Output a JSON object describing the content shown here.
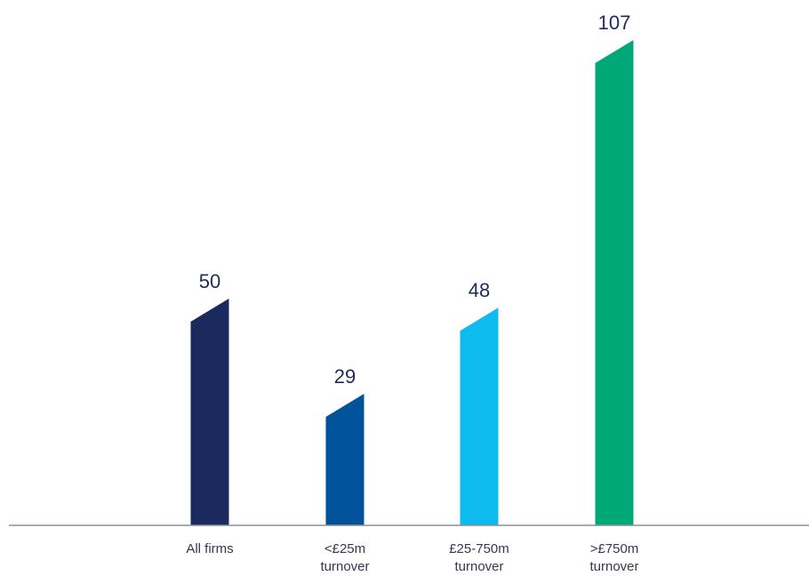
{
  "chart_data": {
    "type": "bar",
    "categories": [
      [
        "All firms"
      ],
      [
        "<£25m",
        "turnover"
      ],
      [
        "£25-750m",
        "turnover"
      ],
      [
        ">£750m",
        "turnover"
      ]
    ],
    "values": [
      50,
      29,
      48,
      107
    ],
    "value_labels": [
      "50",
      "29",
      "48",
      "107"
    ],
    "colors": [
      "#1b2a5e",
      "#00539b",
      "#0dbbef",
      "#00a878"
    ],
    "axis_color": "#8a8f99",
    "title": "",
    "xlabel": "",
    "ylabel": "",
    "ylim": [
      0,
      110
    ],
    "grid": false,
    "legend": "none"
  }
}
